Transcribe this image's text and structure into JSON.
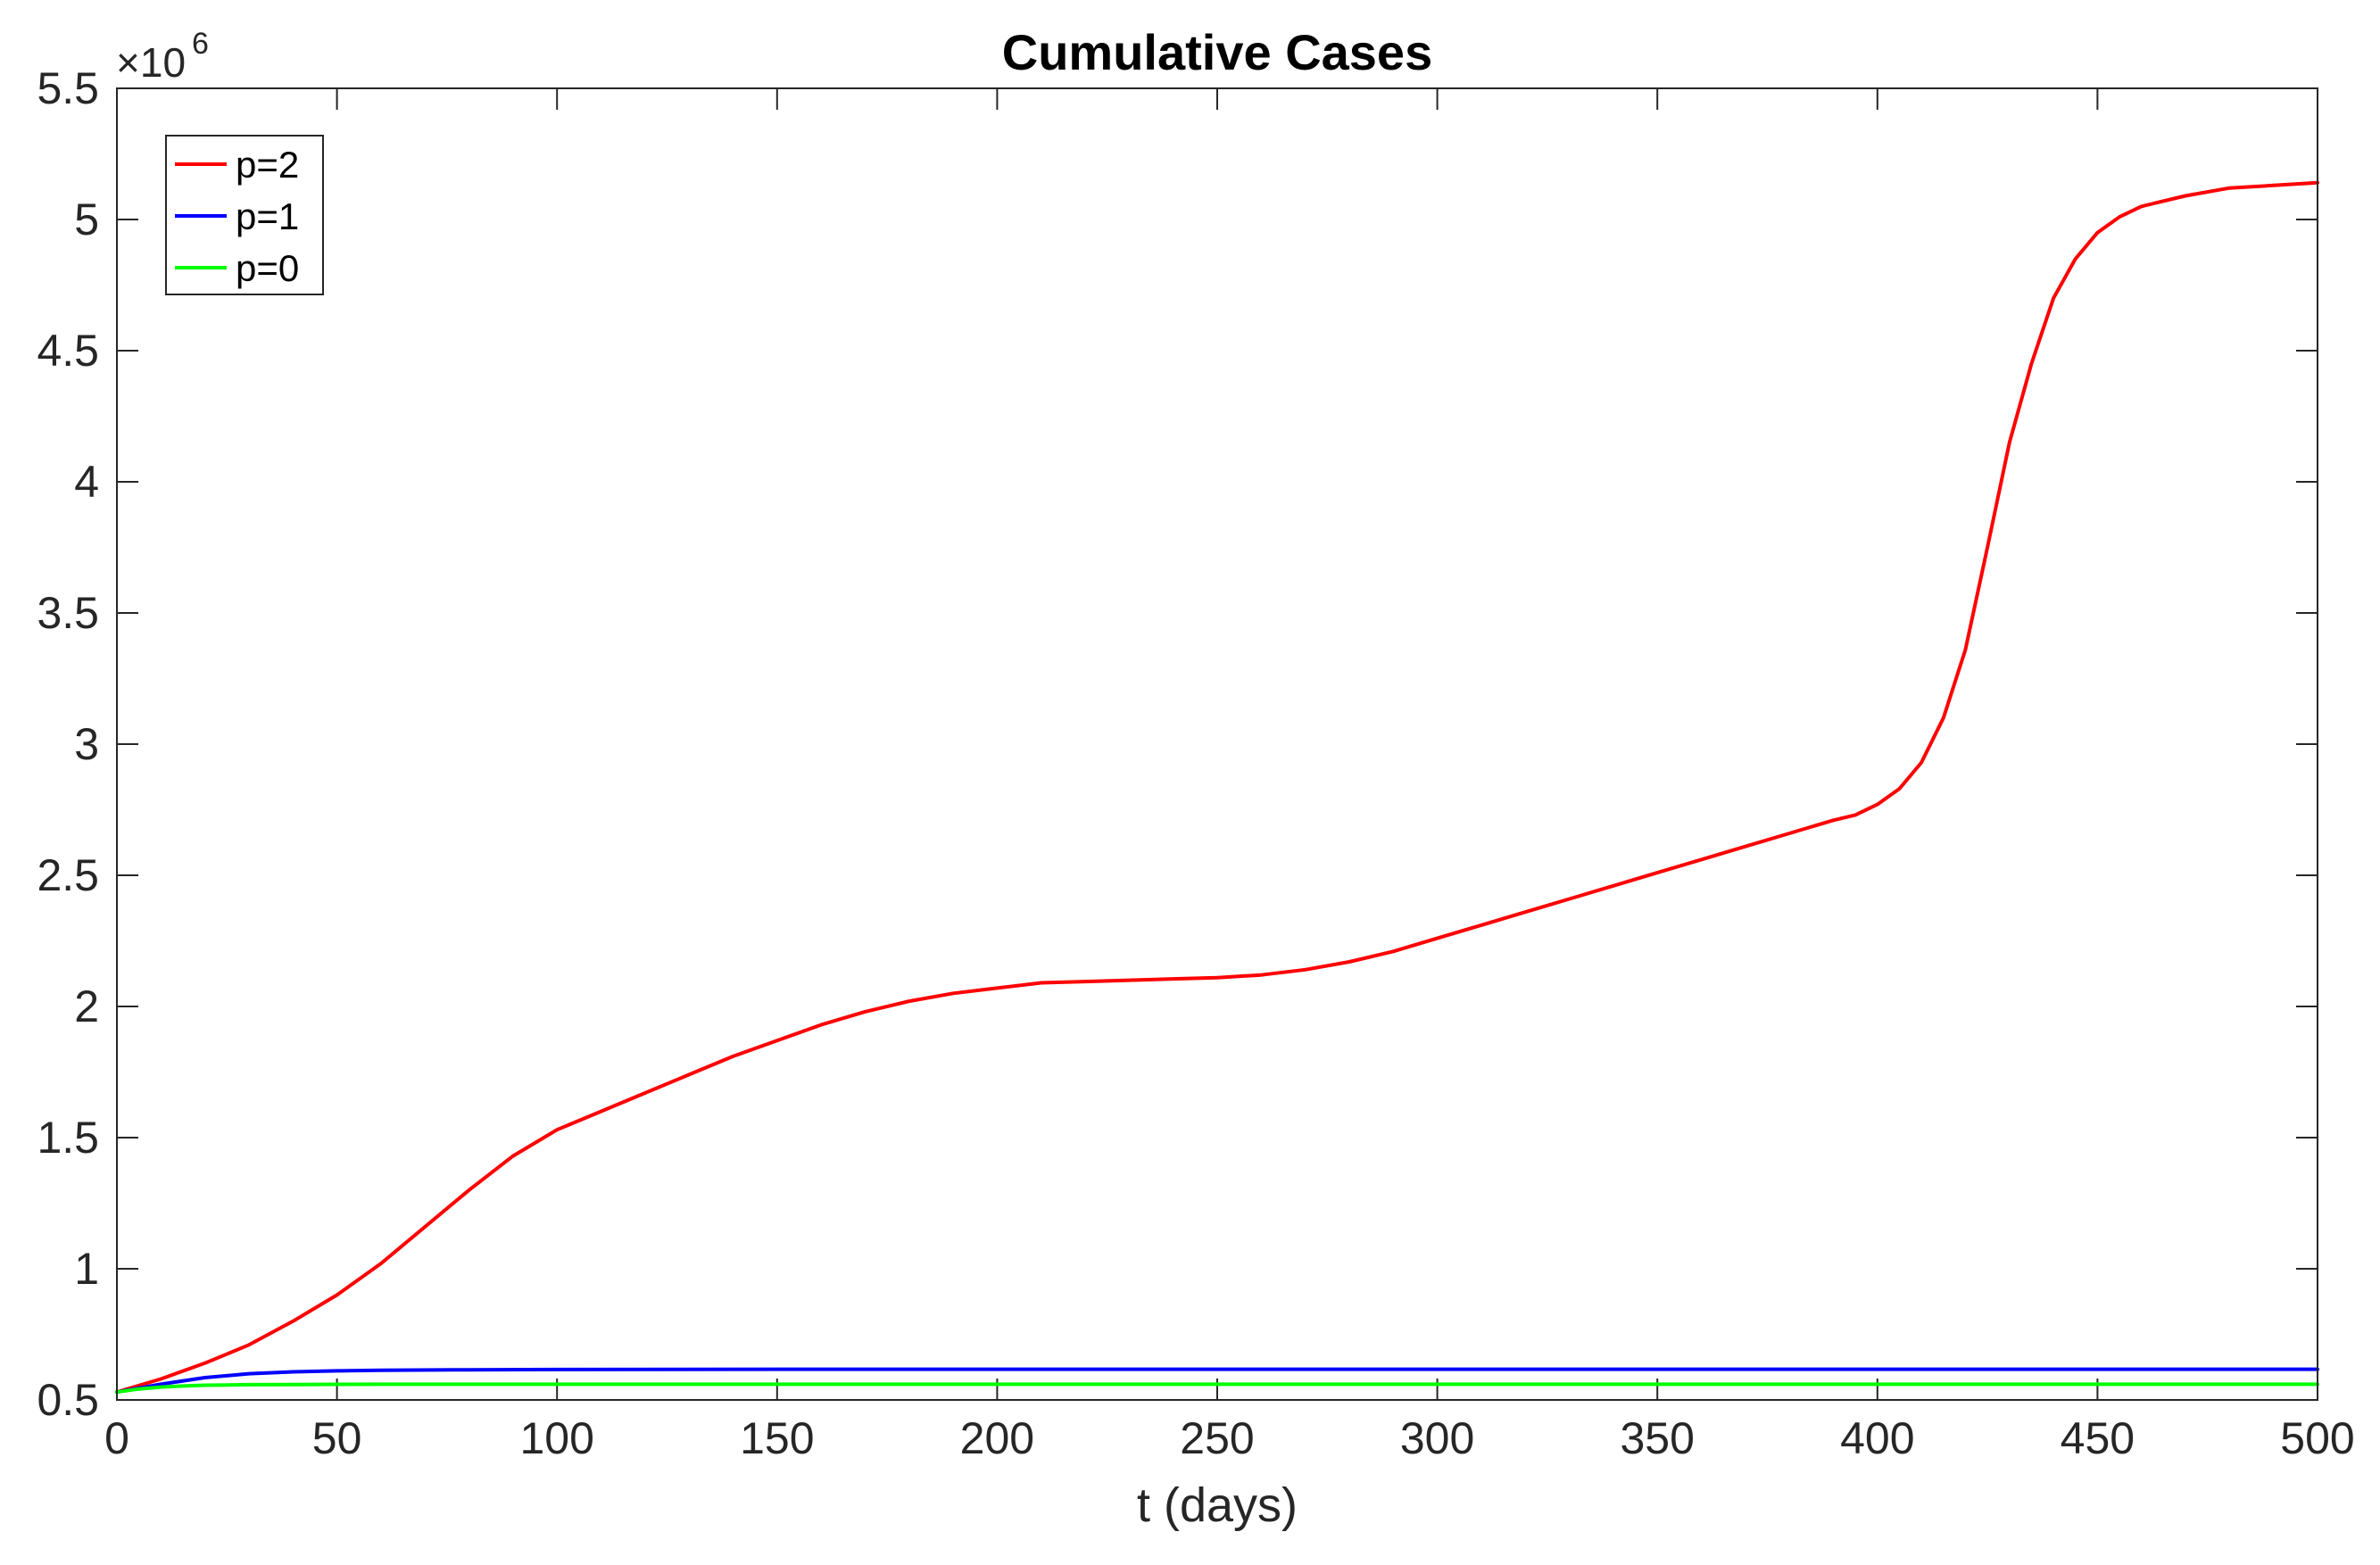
{
  "chart_data": {
    "type": "line",
    "title": "Cumulative Cases",
    "xlabel": "t (days)",
    "ylabel": "",
    "xlim": [
      0,
      500
    ],
    "ylim": [
      0.5,
      5.5
    ],
    "y_exponent_label": {
      "base": "×10",
      "exponent": "6"
    },
    "x_ticks": [
      0,
      50,
      100,
      150,
      200,
      250,
      300,
      350,
      400,
      450,
      500
    ],
    "y_ticks": [
      0.5,
      1,
      1.5,
      2,
      2.5,
      3,
      3.5,
      4,
      4.5,
      5,
      5.5
    ],
    "grid": false,
    "legend_position": "top-left",
    "series": [
      {
        "name": "p=2",
        "color": "#ff0000",
        "x": [
          0,
          10,
          20,
          30,
          40,
          50,
          60,
          70,
          80,
          90,
          100,
          110,
          120,
          130,
          140,
          150,
          160,
          170,
          180,
          190,
          200,
          210,
          220,
          230,
          240,
          250,
          260,
          270,
          280,
          290,
          300,
          310,
          320,
          330,
          340,
          350,
          360,
          370,
          380,
          390,
          395,
          400,
          405,
          410,
          415,
          420,
          425,
          430,
          435,
          440,
          445,
          450,
          455,
          460,
          470,
          480,
          490,
          500
        ],
        "y": [
          0.53,
          0.58,
          0.64,
          0.71,
          0.8,
          0.9,
          1.02,
          1.16,
          1.3,
          1.43,
          1.53,
          1.6,
          1.67,
          1.74,
          1.81,
          1.87,
          1.93,
          1.98,
          2.02,
          2.05,
          2.07,
          2.09,
          2.095,
          2.1,
          2.105,
          2.11,
          2.12,
          2.14,
          2.17,
          2.21,
          2.26,
          2.31,
          2.36,
          2.41,
          2.46,
          2.51,
          2.56,
          2.61,
          2.66,
          2.71,
          2.73,
          2.77,
          2.83,
          2.93,
          3.1,
          3.36,
          3.75,
          4.15,
          4.45,
          4.7,
          4.85,
          4.95,
          5.01,
          5.05,
          5.09,
          5.12,
          5.13,
          5.14
        ]
      },
      {
        "name": "p=1",
        "color": "#0000ff",
        "x": [
          0,
          10,
          20,
          30,
          40,
          50,
          60,
          80,
          100,
          150,
          200,
          300,
          400,
          500
        ],
        "y": [
          0.53,
          0.56,
          0.585,
          0.6,
          0.607,
          0.611,
          0.613,
          0.615,
          0.616,
          0.617,
          0.617,
          0.617,
          0.617,
          0.617
        ]
      },
      {
        "name": "p=0",
        "color": "#00ff00",
        "x": [
          0,
          5,
          10,
          15,
          20,
          30,
          40,
          60,
          100,
          200,
          300,
          400,
          500
        ],
        "y": [
          0.53,
          0.542,
          0.549,
          0.553,
          0.556,
          0.558,
          0.559,
          0.56,
          0.56,
          0.56,
          0.56,
          0.56,
          0.56
        ]
      }
    ]
  }
}
